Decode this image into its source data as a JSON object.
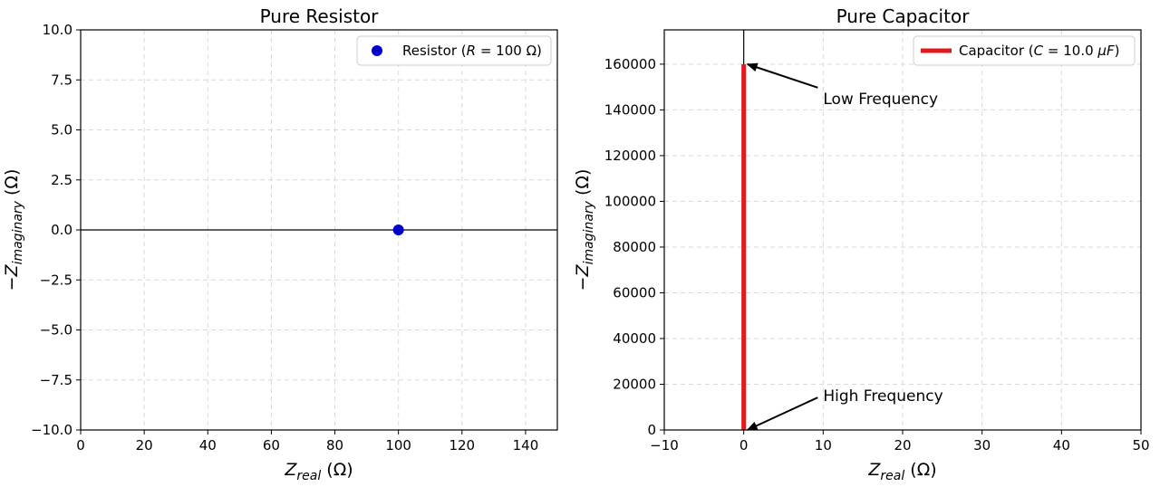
{
  "chart_data": [
    {
      "type": "scatter",
      "title": "Pure Resistor",
      "xlabel": {
        "main": "Z",
        "sub": "real",
        "unit": "(Ω)"
      },
      "ylabel": {
        "prefix": "−",
        "main": "Z",
        "sub": "imaginary",
        "unit": "(Ω)"
      },
      "xlim": [
        0,
        150
      ],
      "ylim": [
        -10,
        10
      ],
      "x_ticks": [
        0,
        20,
        40,
        60,
        80,
        100,
        120,
        140
      ],
      "y_ticks": [
        -10,
        -7.5,
        -5,
        -2.5,
        0,
        2.5,
        5,
        7.5,
        10
      ],
      "x_tick_labels": [
        "0",
        "20",
        "40",
        "60",
        "80",
        "100",
        "120",
        "140"
      ],
      "y_tick_labels": [
        "−10.0",
        "−7.5",
        "−5.0",
        "−2.5",
        "0.0",
        "2.5",
        "5.0",
        "7.5",
        "10.0"
      ],
      "grid": true,
      "zero_line": "horizontal",
      "legend_position": "top-right",
      "series": [
        {
          "legend": {
            "pre": "Resistor (",
            "italic": "R",
            "post": " = 100 Ω)"
          },
          "color": "#0000cc",
          "marker": "circle",
          "points": [
            [
              100,
              0
            ]
          ]
        }
      ]
    },
    {
      "type": "line",
      "title": "Pure Capacitor",
      "xlabel": {
        "main": "Z",
        "sub": "real",
        "unit": "(Ω)"
      },
      "ylabel": {
        "prefix": "−",
        "main": "Z",
        "sub": "imaginary",
        "unit": "(Ω)"
      },
      "xlim": [
        -10,
        50
      ],
      "ylim": [
        0,
        175000
      ],
      "x_ticks": [
        -10,
        0,
        10,
        20,
        30,
        40,
        50
      ],
      "y_ticks": [
        0,
        20000,
        40000,
        60000,
        80000,
        100000,
        120000,
        140000,
        160000
      ],
      "x_tick_labels": [
        "−10",
        "0",
        "10",
        "20",
        "30",
        "40",
        "50"
      ],
      "y_tick_labels": [
        "0",
        "20000",
        "40000",
        "60000",
        "80000",
        "100000",
        "120000",
        "140000",
        "160000"
      ],
      "grid": true,
      "zero_line": "vertical",
      "legend_position": "top-right",
      "series": [
        {
          "legend": {
            "pre": "Capacitor (",
            "italic": "C",
            "post": " = 10.0 ",
            "italic2": "μF",
            "post2": ")"
          },
          "color": "#e31a1c",
          "points": [
            [
              0,
              0
            ],
            [
              0,
              160000
            ]
          ]
        }
      ],
      "annotations": [
        {
          "text": "Low Frequency",
          "xy": [
            0,
            160000
          ],
          "xytext": [
            10,
            145000
          ]
        },
        {
          "text": "High Frequency",
          "xy": [
            0,
            0
          ],
          "xytext": [
            10,
            15000
          ]
        }
      ]
    }
  ]
}
